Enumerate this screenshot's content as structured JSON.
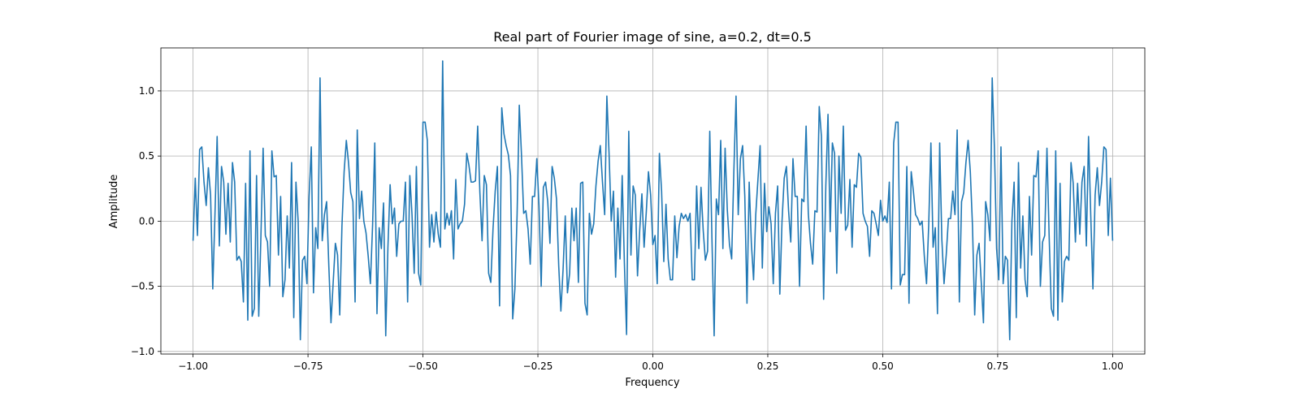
{
  "chart_data": {
    "type": "line",
    "title": "Real part of Fourier image of sine, a=0.2, dt=0.5",
    "xlabel": "Frequency",
    "ylabel": "Amplitude",
    "xlim": [
      -1.07,
      1.07
    ],
    "ylim": [
      -1.02,
      1.33
    ],
    "x_ticks": [
      -1.0,
      -0.75,
      -0.5,
      -0.25,
      0.0,
      0.25,
      0.5,
      0.75,
      1.0
    ],
    "x_tick_labels": [
      "−1.00",
      "−0.75",
      "−0.50",
      "−0.25",
      "0.00",
      "0.25",
      "0.50",
      "0.75",
      "1.00"
    ],
    "y_ticks": [
      -1.0,
      -0.5,
      0.0,
      0.5,
      1.0
    ],
    "y_tick_labels": [
      "−1.0",
      "−0.5",
      "0.0",
      "0.5",
      "1.0"
    ],
    "grid": true,
    "color": "#1f77b4",
    "series": [
      {
        "x_start": -1.0,
        "x_end": 1.0,
        "values": [
          -0.15,
          0.33,
          -0.11,
          0.55,
          0.57,
          0.3,
          0.12,
          0.41,
          0.2,
          -0.52,
          0.05,
          0.65,
          -0.19,
          0.42,
          0.3,
          -0.1,
          0.29,
          -0.16,
          0.45,
          0.3,
          -0.3,
          -0.27,
          -0.31,
          -0.62,
          0.29,
          -0.76,
          0.54,
          -0.73,
          -0.67,
          0.35,
          -0.73,
          -0.11,
          0.56,
          -0.11,
          -0.16,
          -0.5,
          0.54,
          0.34,
          0.35,
          -0.26,
          0.19,
          -0.58,
          -0.45,
          0.04,
          -0.36,
          0.45,
          -0.74,
          0.3,
          0.0,
          -0.91,
          -0.3,
          -0.27,
          -0.48,
          0.19,
          0.57,
          -0.55,
          -0.05,
          -0.21,
          1.1,
          -0.15,
          0.05,
          0.15,
          -0.34,
          -0.78,
          -0.47,
          -0.17,
          -0.26,
          -0.72,
          -0.04,
          0.38,
          0.62,
          0.45,
          0.22,
          0.15,
          -0.62,
          0.7,
          0.02,
          0.23,
          0.0,
          -0.09,
          -0.27,
          -0.48,
          -0.03,
          0.6,
          -0.71,
          -0.05,
          -0.21,
          0.14,
          -0.88,
          -0.2,
          0.28,
          -0.02,
          0.1,
          -0.27,
          -0.02,
          0.0,
          0.0,
          0.3,
          -0.62,
          0.35,
          0.05,
          -0.4,
          0.42,
          -0.4,
          -0.49,
          0.76,
          0.76,
          0.62,
          -0.2,
          0.05,
          -0.16,
          0.07,
          -0.1,
          -0.2,
          1.23,
          -0.06,
          0.06,
          -0.03,
          0.08,
          -0.29,
          0.32,
          -0.06,
          -0.02,
          0.0,
          0.13,
          0.52,
          0.43,
          0.3,
          0.3,
          0.31,
          0.73,
          0.22,
          -0.15,
          0.35,
          0.28,
          -0.4,
          -0.47,
          -0.06,
          0.23,
          0.42,
          -0.65,
          0.87,
          0.67,
          0.58,
          0.51,
          0.35,
          -0.75,
          -0.52,
          0.05,
          0.89,
          0.51,
          0.06,
          0.08,
          -0.06,
          -0.33,
          0.19,
          0.19,
          0.48,
          0.12,
          -0.5,
          0.26,
          0.3,
          0.15,
          -0.17,
          0.42,
          0.33,
          0.17,
          -0.34,
          -0.69,
          -0.37,
          0.04,
          -0.55,
          -0.4,
          0.1,
          -0.15,
          0.1,
          -0.47,
          0.29,
          0.3,
          -0.63,
          -0.72,
          0.06,
          -0.1,
          -0.02,
          0.27,
          0.46,
          0.58,
          0.3,
          0.05,
          0.96,
          0.52,
          0.0,
          0.23,
          -0.43,
          0.1,
          -0.29,
          0.35,
          -0.32,
          -0.87,
          0.69,
          -0.26,
          0.27,
          0.2,
          -0.42,
          -0.07,
          0.21,
          -0.2,
          0.07,
          0.38,
          0.2,
          -0.18,
          -0.11,
          -0.48,
          0.52,
          0.23,
          -0.31,
          0.13,
          -0.29,
          -0.45,
          -0.45,
          0.04,
          -0.28,
          -0.04,
          0.06,
          0.02,
          0.05,
          0.0,
          0.06,
          -0.45,
          -0.45,
          0.27,
          -0.21,
          0.26,
          -0.07,
          -0.3,
          -0.23,
          0.69,
          -0.14,
          -0.88,
          0.17,
          0.05,
          0.62,
          -0.21,
          0.56,
          0.09,
          -0.18,
          -0.29,
          0.38,
          0.96,
          0.05,
          0.48,
          0.58,
          0.19,
          -0.63,
          0.3,
          -0.17,
          -0.45,
          0.05,
          0.32,
          0.58,
          -0.36,
          0.29,
          -0.08,
          0.11,
          -0.02,
          -0.48,
          0.06,
          0.27,
          -0.56,
          0.0,
          0.33,
          0.42,
          0.08,
          -0.16,
          0.48,
          0.19,
          0.19,
          -0.5,
          0.17,
          0.15,
          0.73,
          0.06,
          -0.17,
          -0.33,
          0.08,
          0.07,
          0.88,
          0.65,
          -0.6,
          0.27,
          0.82,
          -0.08,
          0.6,
          0.52,
          -0.4,
          0.5,
          0.06,
          0.73,
          -0.07,
          -0.03,
          0.32,
          -0.2,
          0.28,
          0.26,
          0.52,
          0.49,
          0.06,
          0.0,
          -0.04,
          -0.27,
          0.08,
          0.06,
          -0.02,
          -0.11,
          0.16,
          0.0,
          0.04,
          -0.01,
          0.3,
          -0.52,
          0.6,
          0.76,
          0.76,
          -0.49,
          -0.41,
          -0.41,
          0.42,
          -0.63,
          0.38,
          0.23,
          0.05,
          0.02,
          -0.03,
          0.0,
          -0.27,
          -0.48,
          -0.03,
          0.6,
          -0.2,
          -0.05,
          -0.71,
          0.6,
          -0.14,
          -0.48,
          -0.26,
          0.02,
          0.02,
          0.23,
          0.05,
          0.7,
          -0.62,
          0.15,
          0.22,
          0.45,
          0.62,
          0.38,
          -0.04,
          -0.72,
          -0.26,
          -0.17,
          -0.47,
          -0.78,
          0.15,
          0.05,
          -0.15,
          1.1,
          0.57,
          -0.21,
          -0.45,
          0.57,
          -0.48,
          -0.27,
          -0.3,
          -0.91,
          0.0,
          0.3,
          -0.74,
          0.45,
          -0.36,
          0.04,
          -0.45,
          -0.58,
          0.19,
          -0.26,
          0.35,
          0.34,
          0.54,
          -0.5,
          -0.16,
          -0.11,
          0.56,
          -0.11,
          -0.67,
          -0.73,
          0.54,
          -0.76,
          0.29,
          -0.62,
          -0.31,
          -0.27,
          -0.3,
          0.45,
          0.29,
          -0.16,
          0.29,
          -0.1,
          0.3,
          0.42,
          -0.19,
          0.65,
          0.05,
          -0.52,
          0.2,
          0.41,
          0.12,
          0.3,
          0.57,
          0.55,
          -0.11,
          0.33,
          -0.15
        ]
      }
    ]
  }
}
